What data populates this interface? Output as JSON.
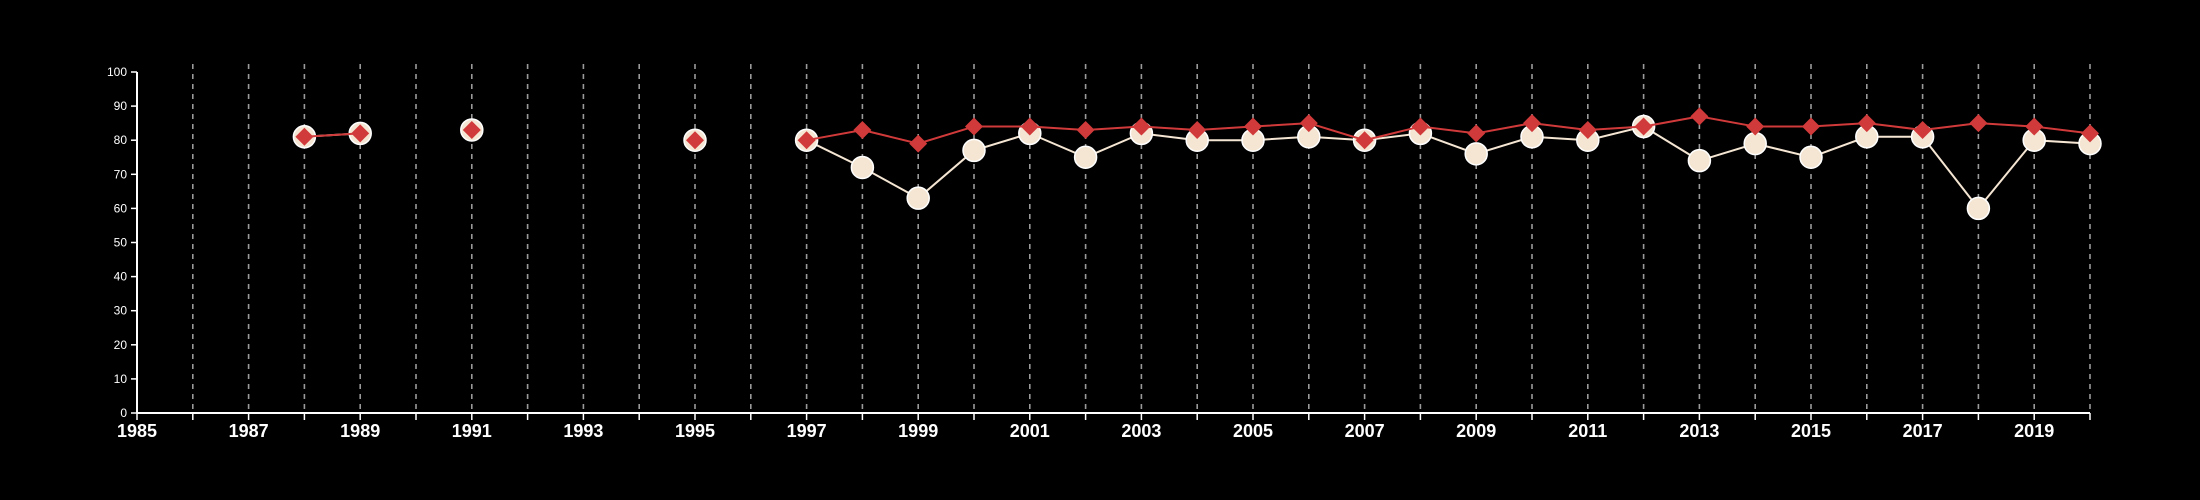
{
  "colors": {
    "background": "#000000",
    "axis": "#ffffff",
    "grid": "#9a9a9a",
    "series_a_fill": "#f5e6d3",
    "series_a_line": "#f5e6d3",
    "series_b": "#d13a3a"
  },
  "chart_data": {
    "type": "line",
    "title": "",
    "xlabel": "",
    "ylabel": "",
    "xlim": [
      1985,
      2020
    ],
    "ylim": [
      0,
      100
    ],
    "x_ticks_labeled": [
      1985,
      1987,
      1989,
      1991,
      1993,
      1995,
      1997,
      1999,
      2001,
      2003,
      2005,
      2007,
      2009,
      2011,
      2013,
      2015,
      2017,
      2019
    ],
    "y_ticks": [
      0,
      10,
      20,
      30,
      40,
      50,
      60,
      70,
      80,
      90,
      100
    ],
    "grid": "vertical dashed lines at every year",
    "legend": "none",
    "series": [
      {
        "marker": "circle",
        "x": [
          1988,
          1989,
          1991,
          1995,
          1997,
          1998,
          1999,
          2000,
          2001,
          2002,
          2003,
          2004,
          2005,
          2006,
          2007,
          2008,
          2009,
          2010,
          2011,
          2012,
          2013,
          2014,
          2015,
          2016,
          2017,
          2018,
          2019,
          2020
        ],
        "values": [
          81,
          82,
          83,
          80,
          80,
          72,
          63,
          77,
          82,
          75,
          82,
          80,
          80,
          81,
          80,
          82,
          76,
          81,
          80,
          84,
          74,
          79,
          75,
          81,
          81,
          60,
          80,
          79
        ]
      },
      {
        "marker": "diamond",
        "x": [
          1988,
          1989,
          1991,
          1995,
          1997,
          1998,
          1999,
          2000,
          2001,
          2002,
          2003,
          2004,
          2005,
          2006,
          2007,
          2008,
          2009,
          2010,
          2011,
          2012,
          2013,
          2014,
          2015,
          2016,
          2017,
          2018,
          2019,
          2020
        ],
        "values": [
          81,
          82,
          83,
          80,
          80,
          83,
          79,
          84,
          84,
          83,
          84,
          83,
          84,
          85,
          80,
          84,
          82,
          85,
          83,
          84,
          87,
          84,
          84,
          85,
          83,
          85,
          84,
          82
        ]
      }
    ]
  }
}
